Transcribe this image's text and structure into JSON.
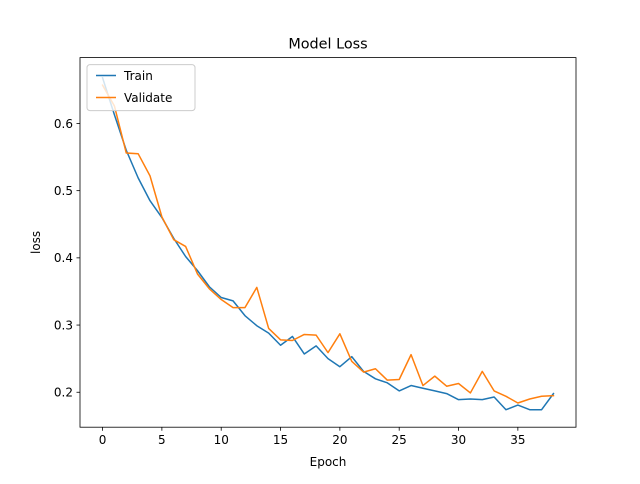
{
  "chart_data": {
    "type": "line",
    "title": "Model Loss",
    "xlabel": "Epoch",
    "ylabel": "loss",
    "xlim": [
      -1.9,
      39.9
    ],
    "ylim": [
      0.148,
      0.698
    ],
    "x_ticks": [
      0,
      5,
      10,
      15,
      20,
      25,
      30,
      35
    ],
    "y_ticks": [
      0.2,
      0.3,
      0.4,
      0.5,
      0.6
    ],
    "x_tick_labels": [
      "0",
      "5",
      "10",
      "15",
      "20",
      "25",
      "30",
      "35"
    ],
    "y_tick_labels": [
      "0.2",
      "0.3",
      "0.4",
      "0.5",
      "0.6"
    ],
    "grid": false,
    "legend_position": "top-left",
    "x": [
      0,
      1,
      2,
      3,
      4,
      5,
      6,
      7,
      8,
      9,
      10,
      11,
      12,
      13,
      14,
      15,
      16,
      17,
      18,
      19,
      20,
      21,
      22,
      23,
      24,
      25,
      26,
      27,
      28,
      29,
      30,
      31,
      32,
      33,
      34,
      35,
      36,
      37,
      38
    ],
    "series": [
      {
        "name": "Train",
        "color": "#1f77b4",
        "values": [
          0.668,
          0.613,
          0.56,
          0.519,
          0.485,
          0.46,
          0.429,
          0.402,
          0.381,
          0.357,
          0.341,
          0.336,
          0.314,
          0.299,
          0.288,
          0.27,
          0.283,
          0.257,
          0.269,
          0.25,
          0.238,
          0.253,
          0.231,
          0.22,
          0.214,
          0.202,
          0.21,
          0.206,
          0.202,
          0.198,
          0.189,
          0.19,
          0.189,
          0.193,
          0.174,
          0.181,
          0.174,
          0.174,
          0.198
        ]
      },
      {
        "name": "Validate",
        "color": "#ff7f0e",
        "values": [
          0.657,
          0.626,
          0.556,
          0.555,
          0.522,
          0.461,
          0.427,
          0.417,
          0.376,
          0.354,
          0.338,
          0.326,
          0.326,
          0.356,
          0.295,
          0.278,
          0.277,
          0.286,
          0.285,
          0.259,
          0.287,
          0.246,
          0.23,
          0.235,
          0.218,
          0.219,
          0.256,
          0.21,
          0.224,
          0.209,
          0.213,
          0.199,
          0.231,
          0.202,
          0.194,
          0.184,
          0.19,
          0.194,
          0.195
        ]
      }
    ]
  }
}
